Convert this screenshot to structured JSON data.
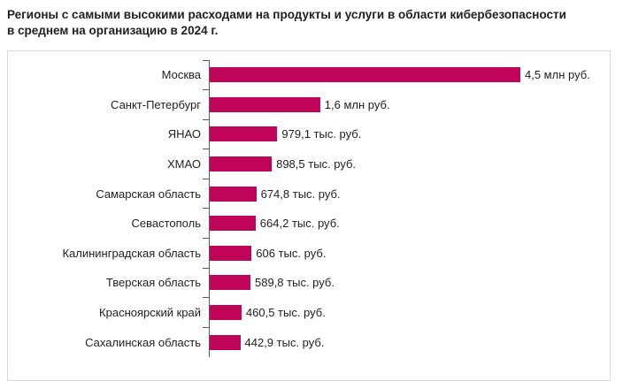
{
  "title": {
    "line1": "Регионы с самыми высокими расходами на продукты и услуги в области кибербезопасности",
    "line2": "в среднем на организацию в 2024 г."
  },
  "chart_data": {
    "type": "bar",
    "orientation": "horizontal",
    "title": "Регионы с самыми высокими расходами на продукты и услуги в области кибербезопасности в среднем на организацию в 2024 г.",
    "xlabel": "",
    "ylabel": "",
    "unit": "тыс. руб.",
    "xlim": [
      0,
      4500
    ],
    "grid": false,
    "legend": false,
    "categories": [
      "Москва",
      "Санкт-Петербург",
      "ЯНАО",
      "ХМАО",
      "Самарская область",
      "Севастополь",
      "Калининградская область",
      "Тверская область",
      "Красноярский край",
      "Сахалинская область"
    ],
    "values": [
      4500,
      1600,
      979.1,
      898.5,
      674.8,
      664.2,
      606,
      589.8,
      460.5,
      442.9
    ],
    "value_labels": [
      "4,5 млн руб.",
      "1,6 млн руб.",
      "979,1 тыс. руб.",
      "898,5 тыс. руб.",
      "674,8 тыс. руб.",
      "664,2 тыс. руб.",
      "606 тыс. руб.",
      "589,8 тыс. руб.",
      "460,5 тыс. руб.",
      "442,9 тыс. руб."
    ],
    "colors": {
      "bar": "#c0045a",
      "axis": "#595959",
      "frame_border": "#d9d9d9",
      "text": "#1f1f1f"
    }
  }
}
